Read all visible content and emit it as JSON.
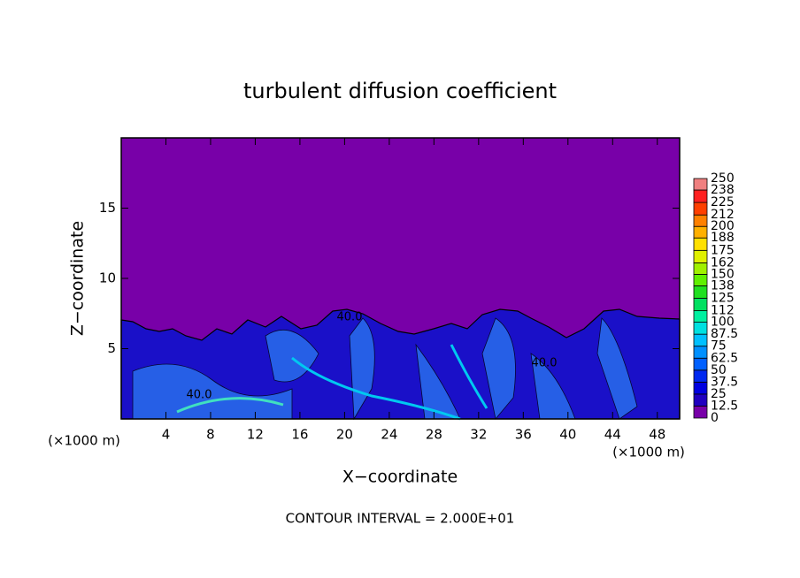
{
  "chart_data": {
    "type": "contour",
    "title": "turbulent diffusion coefficient",
    "x_label": "X−coordinate",
    "y_label": "Z−coordinate",
    "unit_labels": [
      "(×1000 m)",
      "(×1000 m)"
    ],
    "footer": "CONTOUR INTERVAL = 2.000E+01",
    "contour_labels": [
      "40.0",
      "40.0",
      "40.0"
    ],
    "xlim": [
      0,
      50
    ],
    "xticks": [
      4,
      8,
      12,
      16,
      20,
      24,
      28,
      32,
      36,
      40,
      44,
      48
    ],
    "ylim": [
      0,
      20
    ],
    "yticks": [
      5,
      10,
      15
    ],
    "background_color": "#7800a8",
    "colorbar": {
      "levels": [
        0,
        12.5,
        25,
        37.5,
        50,
        62.5,
        75,
        87.5,
        100,
        112,
        125,
        138,
        150,
        162,
        175,
        188,
        200,
        212,
        225,
        238,
        250
      ],
      "colors": [
        "#7800a8",
        "#2000c0",
        "#0000e0",
        "#0028f0",
        "#0060ff",
        "#0090ff",
        "#00c0ff",
        "#00e0e0",
        "#00f0a0",
        "#00e060",
        "#20e020",
        "#60f000",
        "#a0f000",
        "#e0f000",
        "#ffe000",
        "#ffb000",
        "#ff8000",
        "#ff4000",
        "#ff2020",
        "#f08080"
      ]
    }
  }
}
